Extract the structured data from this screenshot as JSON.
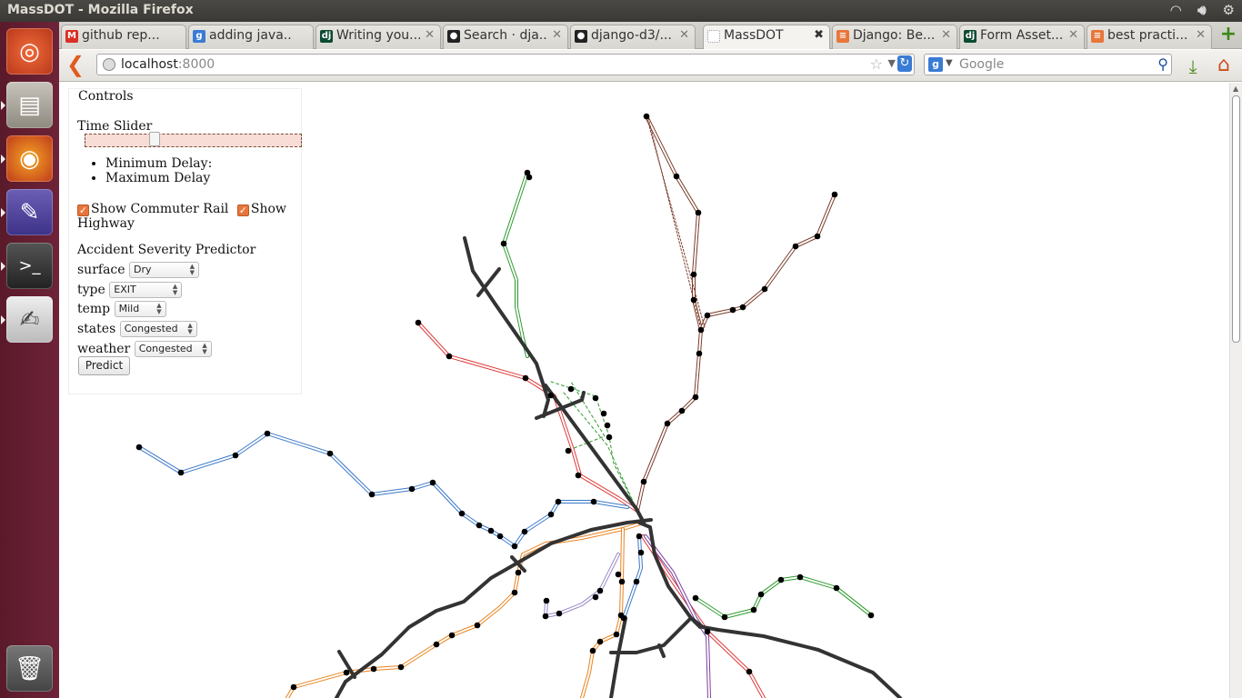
{
  "window": {
    "title": "MassDOT - Mozilla Firefox"
  },
  "tabs": [
    {
      "label": "github rep...",
      "icon": "gmail-icon",
      "color": "#d93025",
      "glyph": "M"
    },
    {
      "label": "adding java...",
      "icon": "google-icon",
      "color": "#3a7bd5",
      "glyph": "g"
    },
    {
      "label": "Writing you...",
      "icon": "django-icon",
      "color": "#0c4b33",
      "glyph": "dj"
    },
    {
      "label": "Search · dja...",
      "icon": "github-icon",
      "color": "#222222",
      "glyph": "●"
    },
    {
      "label": "django-d3/...",
      "icon": "github-icon",
      "color": "#222222",
      "glyph": "●"
    },
    {
      "label": "MassDOT",
      "icon": "blank-page-icon",
      "color": "#ffffff",
      "glyph": ""
    },
    {
      "label": "Django: Be...",
      "icon": "stackoverflow-icon",
      "color": "#e8763a",
      "glyph": "≡"
    },
    {
      "label": "Form Asset...",
      "icon": "django-icon",
      "color": "#0c4b33",
      "glyph": "dj"
    },
    {
      "label": "best practi...",
      "icon": "stackoverflow-icon",
      "color": "#e8763a",
      "glyph": "≡"
    }
  ],
  "url": {
    "host": "localhost",
    "port": ":8000"
  },
  "search": {
    "placeholder": "Google"
  },
  "controls": {
    "legend": "Controls",
    "slider_label": "Time Slider",
    "slider_value": 0.31,
    "min_delay": "Minimum Delay:",
    "max_delay": "Maximum Delay",
    "show_commuter": "Show Commuter Rail",
    "show_highway_a": "Show",
    "show_highway_b": "Highway",
    "predictor_title": "Accident Severity Predictor",
    "fields": {
      "surface": {
        "label": "surface",
        "value": "Dry"
      },
      "type": {
        "label": "type",
        "value": "EXIT"
      },
      "temp": {
        "label": "temp",
        "value": "Mild"
      },
      "states": {
        "label": "states",
        "value": "Congested"
      },
      "weather": {
        "label": "weather",
        "value": "Congested"
      }
    },
    "predict": "Predict"
  },
  "colors": {
    "green_line": "#2e9b2e",
    "red_line": "#e03a3a",
    "blue_line": "#3a78c8",
    "orange_line": "#e8821e",
    "brown_rail": "#7a3b2a",
    "purple_rail": "#7b3fa0",
    "highway": "#333333"
  }
}
